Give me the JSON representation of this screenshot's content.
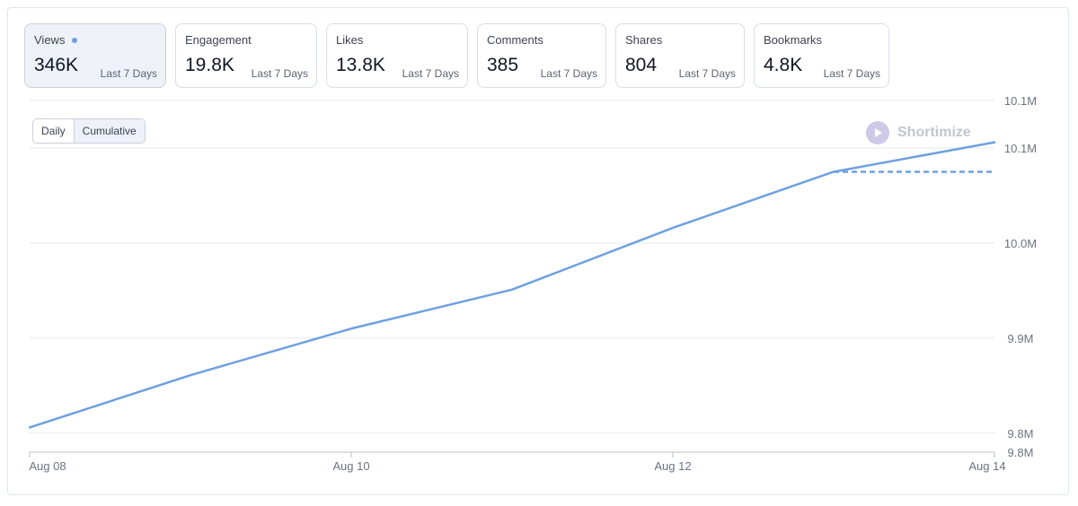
{
  "metrics": [
    {
      "label": "Views",
      "value": "346K",
      "period": "Last 7 Days",
      "active": true
    },
    {
      "label": "Engagement",
      "value": "19.8K",
      "period": "Last 7 Days",
      "active": false
    },
    {
      "label": "Likes",
      "value": "13.8K",
      "period": "Last 7 Days",
      "active": false
    },
    {
      "label": "Comments",
      "value": "385",
      "period": "Last 7 Days",
      "active": false
    },
    {
      "label": "Shares",
      "value": "804",
      "period": "Last 7 Days",
      "active": false
    },
    {
      "label": "Bookmarks",
      "value": "4.8K",
      "period": "Last 7 Days",
      "active": false
    }
  ],
  "toggle": {
    "daily": "Daily",
    "cumulative": "Cumulative",
    "selected": "Cumulative"
  },
  "brand": {
    "name": "Shortimize"
  },
  "colors": {
    "line": "#6fa0e0",
    "accent_dot": "#6fa0e0",
    "grid": "#e3e8ee"
  },
  "chart_data": {
    "type": "line",
    "x": [
      "Aug 08",
      "Aug 09",
      "Aug 10",
      "Aug 11",
      "Aug 12",
      "Aug 13",
      "Aug 14"
    ],
    "x_tick_labels": [
      "Aug 08",
      "Aug 10",
      "Aug 12",
      "Aug 14"
    ],
    "series": [
      {
        "values": [
          9806000,
          9861000,
          9910000,
          9951000,
          10016000,
          10075000,
          10106000
        ]
      }
    ],
    "projection": {
      "from": "Aug 13",
      "to": "Aug 14",
      "value": 10075000,
      "style": "dashed"
    },
    "y_tick_values": [
      9780000,
      9800000,
      9900000,
      10000000,
      10100000,
      10150000
    ],
    "y_tick_labels": [
      "9.8M",
      "9.8M",
      "9.9M",
      "10.0M",
      "10.1M",
      "10.1M"
    ],
    "ylim": [
      9780000,
      10150000
    ],
    "grid": true,
    "xlabel": "",
    "ylabel": ""
  }
}
